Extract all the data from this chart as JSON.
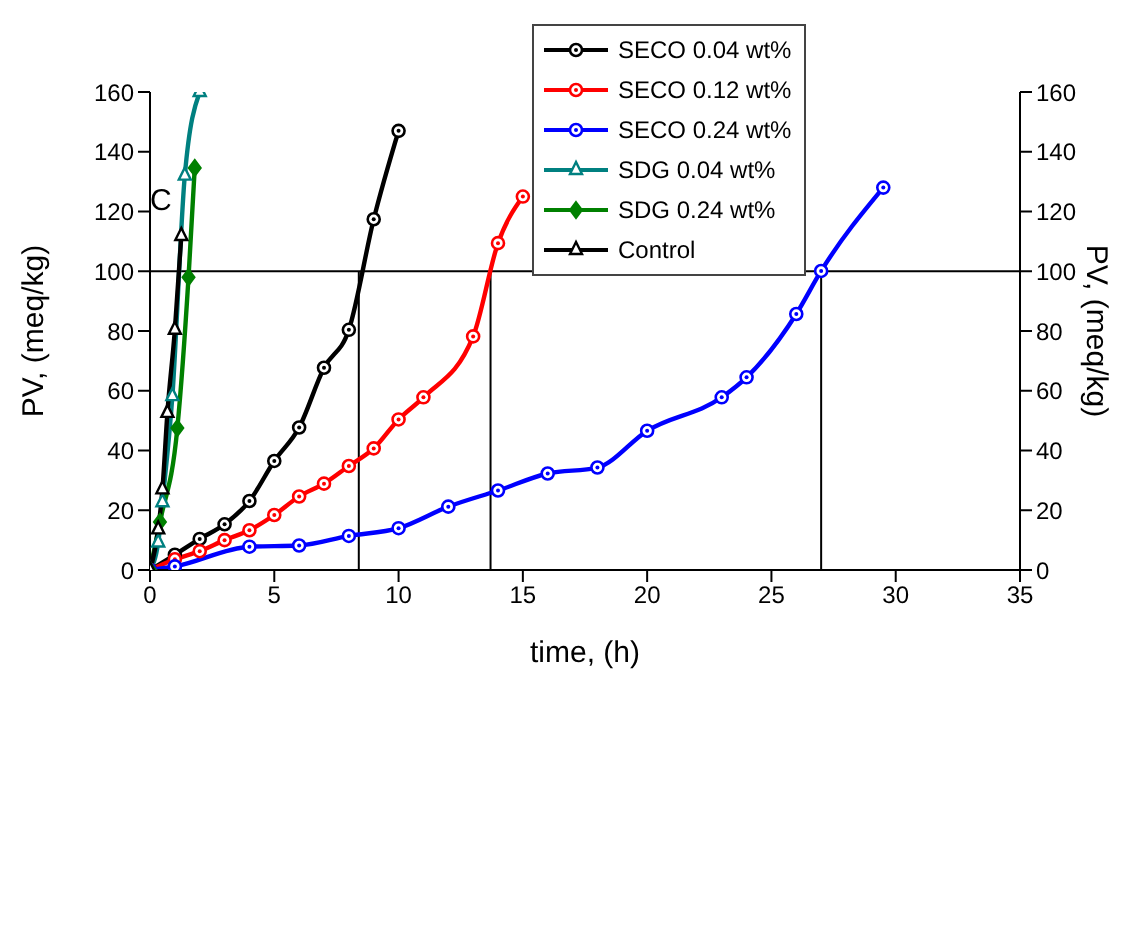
{
  "chart_data": {
    "type": "line",
    "xlabel": "time, (h)",
    "ylabel": "PV, (meq/kg)",
    "y2label": "PV, (meq/kg)",
    "xlim": [
      0,
      35
    ],
    "xticks": [
      0,
      5,
      10,
      15,
      20,
      25,
      30,
      35
    ],
    "ylim": [
      0,
      160
    ],
    "yticks": [
      0,
      20,
      40,
      60,
      80,
      100,
      120,
      140,
      160
    ],
    "y2lim": [
      0,
      160
    ],
    "y2ticks": [
      0,
      20,
      40,
      60,
      80,
      100,
      120,
      140,
      160
    ],
    "legend": "top right",
    "line_style": "solid",
    "series": [
      {
        "name": "SECO 0.04 wt%",
        "color": "#000000",
        "marker": "circle",
        "x": [
          0,
          1,
          2,
          3,
          4,
          5,
          6,
          7,
          8,
          9,
          10
        ],
        "values": [
          0,
          5.1,
          10.4,
          15.3,
          23.1,
          36.5,
          47.7,
          67.7,
          80.4,
          117.4,
          147
        ]
      },
      {
        "name": "SECO 0.12 wt%",
        "color": "#ff0000",
        "marker": "circle",
        "x": [
          0,
          1,
          2,
          3,
          4,
          5,
          6,
          7,
          8,
          9,
          10,
          11,
          13,
          14,
          15
        ],
        "values": [
          0,
          3.6,
          6.3,
          10,
          13.3,
          18.4,
          24.6,
          28.9,
          34.8,
          40.7,
          50.4,
          57.8,
          78.2,
          109.4,
          125
        ]
      },
      {
        "name": "SECO 0.24 wt%",
        "color": "#0000ff",
        "marker": "circle",
        "x": [
          0,
          1,
          4,
          6,
          8,
          10,
          12,
          14,
          16,
          18,
          20,
          23,
          24,
          26,
          27,
          29.5
        ],
        "values": [
          0,
          1.2,
          7.8,
          8.2,
          11.4,
          14,
          21.2,
          26.6,
          32.3,
          34.3,
          46.6,
          57.8,
          64.5,
          85.7,
          100.1,
          128
        ]
      },
      {
        "name": "SDG 0.04 wt%",
        "color": "#008080",
        "marker": "triangle",
        "x": [
          0,
          0.33,
          0.5,
          0.9,
          1.4,
          2
        ],
        "values": [
          0,
          9.2,
          22.7,
          58.2,
          132,
          160
        ]
      },
      {
        "name": "SDG 0.24 wt%",
        "color": "#008000",
        "marker": "diamond",
        "x": [
          0,
          0.4,
          1.1,
          1.55,
          1.8
        ],
        "values": [
          0,
          16.1,
          47.5,
          98,
          134.6
        ]
      },
      {
        "name": "Control",
        "color": "#000000",
        "marker": "triangle",
        "x": [
          0,
          0.33,
          0.5,
          0.7,
          1,
          1.26
        ],
        "values": [
          0,
          13.6,
          27,
          52.6,
          80.4,
          111.8
        ]
      }
    ],
    "ref_lines": [
      {
        "axis": "y",
        "value": 100,
        "color": "#000000"
      },
      {
        "axis": "x",
        "value": 8.4,
        "color": "#000000"
      },
      {
        "axis": "x",
        "value": 13.7,
        "color": "#000000"
      },
      {
        "axis": "x",
        "value": 27,
        "color": "#000000"
      }
    ],
    "annotations": [
      "C"
    ]
  }
}
